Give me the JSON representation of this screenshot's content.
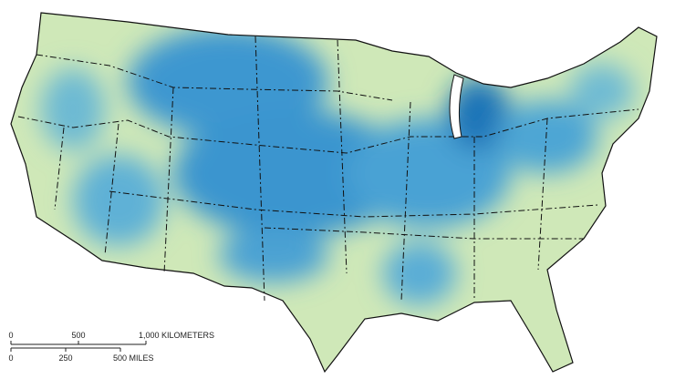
{
  "scale_bar": {
    "kilometers": {
      "ticks": [
        "0",
        "500"
      ],
      "label": "1,000 KILOMETERS"
    },
    "miles": {
      "ticks": [
        "0",
        "250"
      ],
      "label": "500 MILES"
    }
  }
}
